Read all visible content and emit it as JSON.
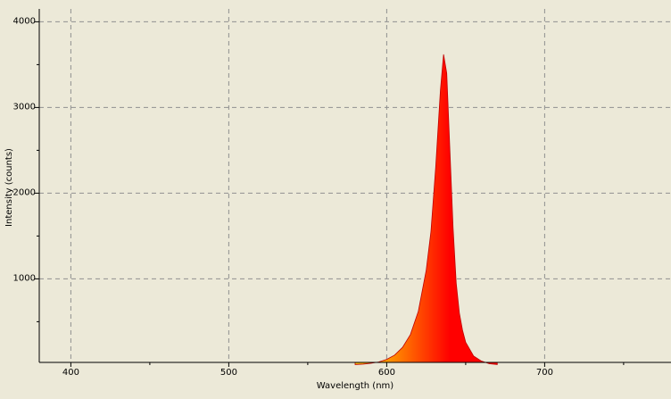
{
  "chart_data": {
    "type": "area",
    "x_label": "Wavelength (nm)",
    "y_label": "Intensity (counts)",
    "x": [
      580,
      585,
      590,
      595,
      600,
      605,
      610,
      615,
      620,
      625,
      628,
      631,
      634,
      636,
      638,
      640,
      642,
      644,
      646,
      648,
      650,
      655,
      660,
      665,
      670
    ],
    "values": [
      0,
      5,
      15,
      30,
      60,
      110,
      200,
      350,
      620,
      1100,
      1550,
      2300,
      3200,
      3620,
      3400,
      2500,
      1600,
      950,
      600,
      400,
      260,
      100,
      40,
      10,
      0
    ],
    "gradient": [
      "#ffc000",
      "#ff0000"
    ],
    "line_color": "#c00000",
    "xlim": [
      380,
      780
    ],
    "ylim": [
      25,
      4150
    ],
    "xticks": [
      400,
      500,
      600,
      700
    ],
    "yticks": [
      1000,
      2000,
      3000,
      4000
    ],
    "x_minor_ticks": [
      450,
      550,
      650,
      750
    ],
    "y_minor_ticks": [
      500,
      1500,
      2500,
      3500
    ],
    "grid": true
  }
}
